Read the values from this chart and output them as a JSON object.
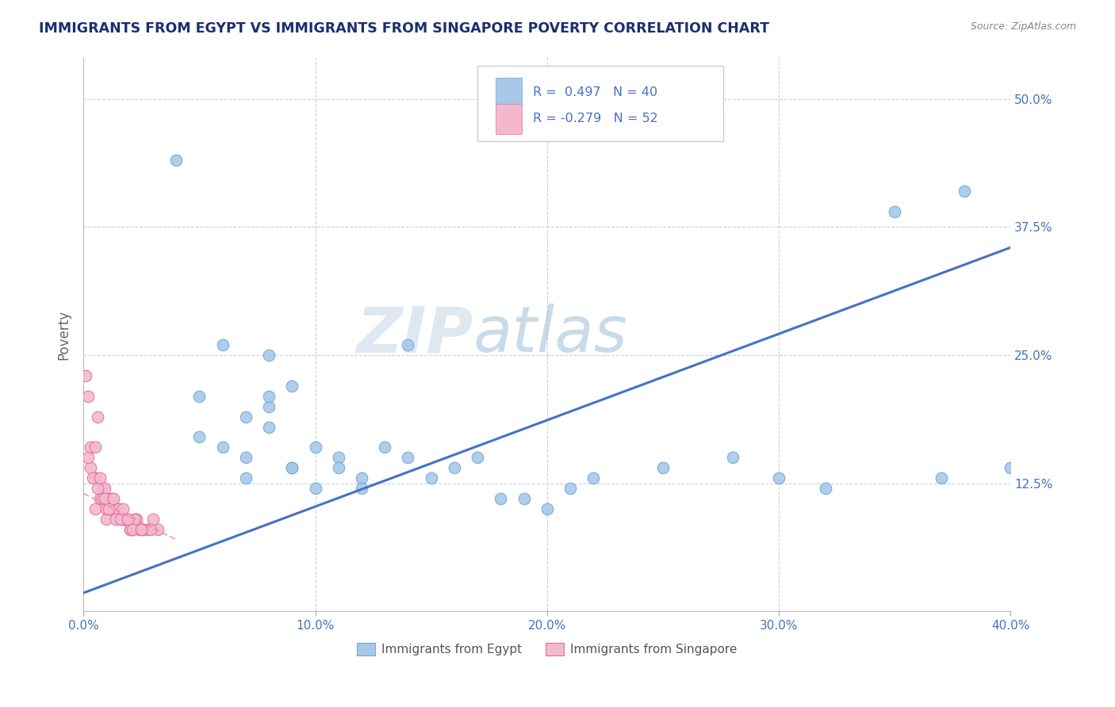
{
  "title": "IMMIGRANTS FROM EGYPT VS IMMIGRANTS FROM SINGAPORE POVERTY CORRELATION CHART",
  "source": "Source: ZipAtlas.com",
  "ylabel": "Poverty",
  "xlim": [
    0.0,
    0.4
  ],
  "ylim": [
    0.0,
    0.54
  ],
  "xtick_labels": [
    "0.0%",
    "10.0%",
    "20.0%",
    "30.0%",
    "40.0%"
  ],
  "xtick_vals": [
    0.0,
    0.1,
    0.2,
    0.3,
    0.4
  ],
  "ytick_labels": [
    "12.5%",
    "25.0%",
    "37.5%",
    "50.0%"
  ],
  "ytick_vals": [
    0.125,
    0.25,
    0.375,
    0.5
  ],
  "watermark_zip": "ZIP",
  "watermark_atlas": "atlas",
  "egypt_color": "#a8c8e8",
  "egypt_edge": "#6aaad8",
  "singapore_color": "#f4b8cc",
  "singapore_edge": "#e070a0",
  "egypt_r": 0.497,
  "egypt_n": 40,
  "singapore_r": -0.279,
  "singapore_n": 52,
  "egypt_line_x": [
    0.0,
    0.4
  ],
  "egypt_line_y": [
    0.018,
    0.355
  ],
  "singapore_line_x": [
    0.0,
    0.04
  ],
  "singapore_line_y": [
    0.115,
    0.07
  ],
  "egypt_scatter_x": [
    0.04,
    0.06,
    0.05,
    0.07,
    0.08,
    0.06,
    0.05,
    0.07,
    0.08,
    0.09,
    0.1,
    0.08,
    0.07,
    0.09,
    0.11,
    0.1,
    0.12,
    0.08,
    0.09,
    0.11,
    0.13,
    0.14,
    0.12,
    0.15,
    0.16,
    0.14,
    0.18,
    0.2,
    0.22,
    0.25,
    0.28,
    0.3,
    0.32,
    0.35,
    0.37,
    0.38,
    0.4,
    0.17,
    0.19,
    0.21
  ],
  "egypt_scatter_y": [
    0.44,
    0.26,
    0.21,
    0.19,
    0.2,
    0.16,
    0.17,
    0.15,
    0.18,
    0.14,
    0.16,
    0.21,
    0.13,
    0.14,
    0.15,
    0.12,
    0.13,
    0.25,
    0.22,
    0.14,
    0.16,
    0.15,
    0.12,
    0.13,
    0.14,
    0.26,
    0.11,
    0.1,
    0.13,
    0.14,
    0.15,
    0.13,
    0.12,
    0.39,
    0.13,
    0.41,
    0.14,
    0.15,
    0.11,
    0.12
  ],
  "singapore_scatter_x": [
    0.005,
    0.008,
    0.01,
    0.012,
    0.015,
    0.018,
    0.02,
    0.022,
    0.025,
    0.028,
    0.03,
    0.032,
    0.005,
    0.007,
    0.009,
    0.011,
    0.014,
    0.016,
    0.019,
    0.021,
    0.024,
    0.003,
    0.006,
    0.013,
    0.017,
    0.023,
    0.026,
    0.029,
    0.002,
    0.004,
    0.008,
    0.01,
    0.015,
    0.02,
    0.001,
    0.003,
    0.007,
    0.012,
    0.018,
    0.022,
    0.005,
    0.009,
    0.014,
    0.016,
    0.011,
    0.019,
    0.002,
    0.006,
    0.013,
    0.017,
    0.021,
    0.025
  ],
  "singapore_scatter_y": [
    0.1,
    0.12,
    0.09,
    0.11,
    0.1,
    0.09,
    0.08,
    0.09,
    0.08,
    0.08,
    0.09,
    0.08,
    0.13,
    0.11,
    0.12,
    0.1,
    0.1,
    0.09,
    0.09,
    0.08,
    0.08,
    0.14,
    0.12,
    0.1,
    0.09,
    0.09,
    0.08,
    0.08,
    0.15,
    0.13,
    0.11,
    0.1,
    0.1,
    0.08,
    0.23,
    0.16,
    0.13,
    0.11,
    0.09,
    0.09,
    0.16,
    0.11,
    0.09,
    0.09,
    0.1,
    0.09,
    0.21,
    0.19,
    0.11,
    0.1,
    0.08,
    0.08
  ],
  "background_color": "#ffffff",
  "grid_color": "#c0d4e8",
  "title_color": "#1a2f6e",
  "tick_label_color": "#4472c4"
}
